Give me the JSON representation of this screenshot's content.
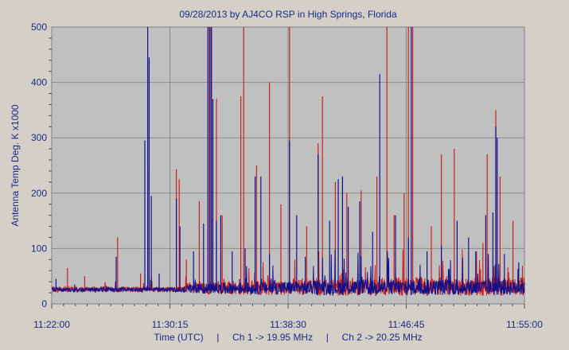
{
  "chart_data": {
    "type": "line",
    "title": "09/28/2013  by  AJ4CO RSP  in  High Springs, Florida",
    "xlabel": "Time (UTC)     |     Ch 1 -> 19.95 MHz     |     Ch 2 -> 20.25 MHz",
    "ylabel": "Antenna Temp Deg. K x1000",
    "x_ticks": [
      "11:22:00",
      "11:30:15",
      "11:38:30",
      "11:46:45",
      "11:55:00"
    ],
    "y_ticks": [
      0,
      100,
      200,
      300,
      400,
      500
    ],
    "xlim_minutes": [
      0,
      33
    ],
    "ylim": [
      0,
      500
    ],
    "grid": true,
    "background": "#c0c0c0",
    "baseline": 24,
    "series": [
      {
        "name": "Ch 1 -> 19.95 MHz",
        "color": "#cc2020",
        "spikes": [
          [
            1.1,
            65
          ],
          [
            2.3,
            50
          ],
          [
            4.6,
            120
          ],
          [
            6.2,
            55
          ],
          [
            6.7,
            245
          ],
          [
            6.95,
            50
          ],
          [
            8.7,
            243
          ],
          [
            8.9,
            225
          ],
          [
            9.4,
            80
          ],
          [
            10.3,
            185
          ],
          [
            11.0,
            500
          ],
          [
            11.15,
            500
          ],
          [
            11.5,
            370
          ],
          [
            11.9,
            160
          ],
          [
            13.2,
            375
          ],
          [
            13.4,
            500
          ],
          [
            14.3,
            250
          ],
          [
            15.2,
            400
          ],
          [
            16.0,
            180
          ],
          [
            16.6,
            500
          ],
          [
            17.8,
            140
          ],
          [
            18.6,
            290
          ],
          [
            18.9,
            375
          ],
          [
            19.8,
            220
          ],
          [
            20.6,
            200
          ],
          [
            21.6,
            205
          ],
          [
            22.7,
            230
          ],
          [
            23.4,
            500
          ],
          [
            23.9,
            160
          ],
          [
            24.6,
            200
          ],
          [
            24.9,
            500
          ],
          [
            25.2,
            500
          ],
          [
            26.5,
            140
          ],
          [
            27.2,
            270
          ],
          [
            28.1,
            280
          ],
          [
            30.1,
            110
          ],
          [
            30.4,
            270
          ],
          [
            31.0,
            350
          ],
          [
            31.3,
            230
          ],
          [
            32.2,
            150
          ]
        ]
      },
      {
        "name": "Ch 2 -> 20.25 MHz",
        "color": "#10108c",
        "spikes": [
          [
            0.3,
            45
          ],
          [
            1.6,
            35
          ],
          [
            4.5,
            85
          ],
          [
            6.5,
            295
          ],
          [
            6.7,
            500
          ],
          [
            6.8,
            445
          ],
          [
            6.95,
            195
          ],
          [
            7.5,
            55
          ],
          [
            8.7,
            190
          ],
          [
            8.95,
            140
          ],
          [
            9.9,
            95
          ],
          [
            10.6,
            145
          ],
          [
            10.9,
            500
          ],
          [
            11.05,
            500
          ],
          [
            11.15,
            500
          ],
          [
            11.25,
            370
          ],
          [
            11.5,
            150
          ],
          [
            11.8,
            160
          ],
          [
            12.6,
            95
          ],
          [
            13.5,
            100
          ],
          [
            14.2,
            230
          ],
          [
            14.6,
            230
          ],
          [
            15.2,
            90
          ],
          [
            16.6,
            295
          ],
          [
            17.1,
            160
          ],
          [
            17.7,
            85
          ],
          [
            18.6,
            270
          ],
          [
            19.4,
            150
          ],
          [
            20.0,
            225
          ],
          [
            20.3,
            230
          ],
          [
            20.7,
            175
          ],
          [
            21.5,
            185
          ],
          [
            22.4,
            130
          ],
          [
            22.9,
            415
          ],
          [
            24.0,
            160
          ],
          [
            24.9,
            120
          ],
          [
            25.1,
            500
          ],
          [
            26.2,
            95
          ],
          [
            27.2,
            105
          ],
          [
            28.3,
            150
          ],
          [
            29.1,
            120
          ],
          [
            29.6,
            95
          ],
          [
            30.3,
            160
          ],
          [
            30.8,
            165
          ],
          [
            31.0,
            320
          ],
          [
            31.1,
            300
          ],
          [
            31.6,
            90
          ],
          [
            32.6,
            75
          ]
        ]
      }
    ]
  }
}
